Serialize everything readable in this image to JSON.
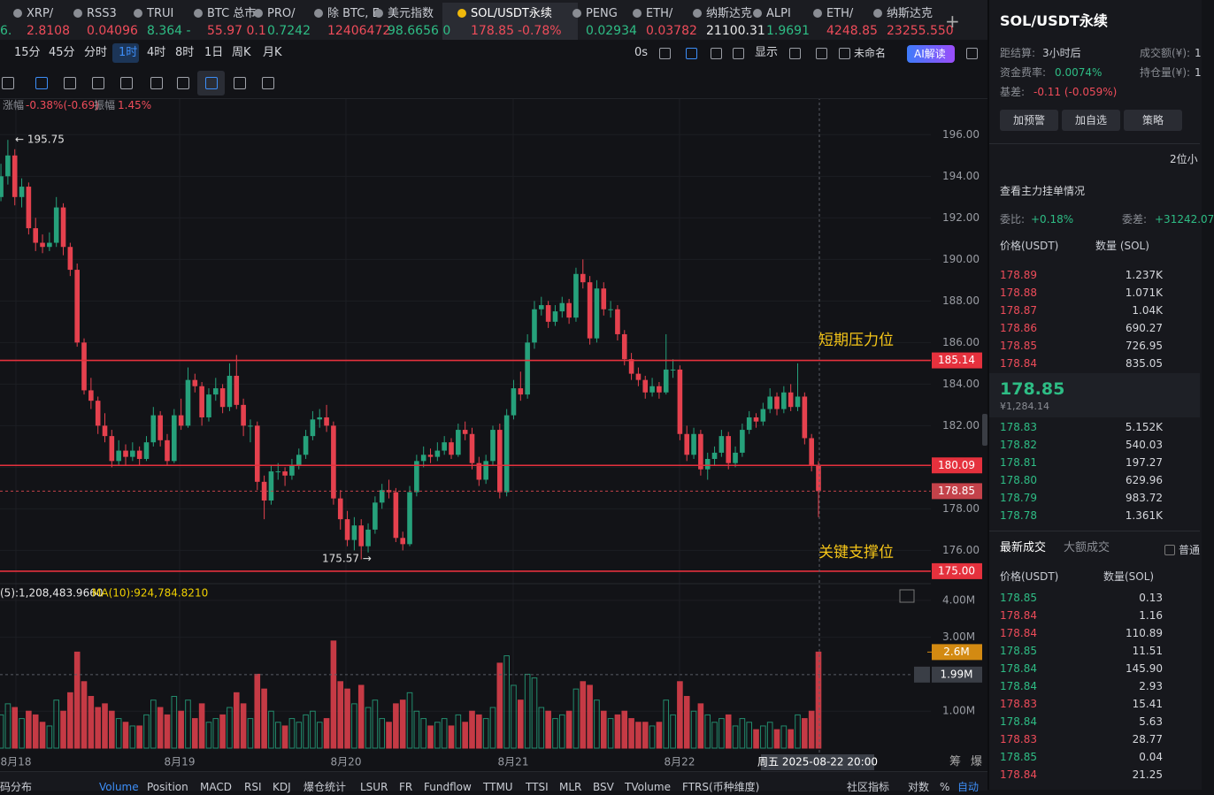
{
  "tab_first_price": "6.",
  "tabs": [
    {
      "name": "XRP/",
      "price": "2.8108",
      "color": "#ef4c5a"
    },
    {
      "name": "RSS3",
      "price": "0.04096",
      "color": "#ef4c5a"
    },
    {
      "name": "TRUI",
      "price": "8.364 -",
      "color": "#2ebd85"
    },
    {
      "name": "BTC 总市",
      "price": "55.97 0.1",
      "color": "#ef4c5a"
    },
    {
      "name": "PRO/",
      "price": "0.7242",
      "color": "#2ebd85"
    },
    {
      "name": "除 BTC, E",
      "price": "12406472",
      "color": "#ef4c5a"
    },
    {
      "name": "美元指数",
      "price": "98.6656 0",
      "color": "#2ebd85"
    },
    {
      "name": "SOL/USDT永续",
      "price": "178.85",
      "change": "-0.78%",
      "color": "#ef4c5a",
      "active": true
    },
    {
      "name": "PENG",
      "price": "0.02934",
      "color": "#2ebd85"
    },
    {
      "name": "ETH/",
      "price": "0.03782",
      "color": "#ef4c5a"
    },
    {
      "name": "纳斯达克",
      "price": "21100.31",
      "color": "#e8e8e8"
    },
    {
      "name": "ALPI",
      "price": "1.9691",
      "color": "#2ebd85"
    },
    {
      "name": "ETH/",
      "price": "4248.85",
      "color": "#ef4c5a"
    },
    {
      "name": "纳斯达克",
      "price": "23255.550",
      "color": "#ef4c5a"
    }
  ],
  "intervals": [
    "15分",
    "45分",
    "分时",
    "1时",
    "4时",
    "8时",
    "1日",
    "周K",
    "月K"
  ],
  "active_interval_index": 3,
  "toolbar_right": {
    "countdown": "0s",
    "display": "显示",
    "layout_name": "未命名",
    "ai": "AI解读"
  },
  "info": {
    "change_label": "涨幅",
    "change": "-0.38%(-0.69)",
    "amplitude_label": "振幅",
    "amplitude": "1.45%"
  },
  "chart_data": {
    "type": "candlestick",
    "up_color": "#26a17b",
    "down_color": "#e5414e",
    "ylim": [
      174.4,
      197.8
    ],
    "yticks": [
      {
        "value": 176,
        "label": "176.00"
      },
      {
        "value": 178,
        "label": "178.00"
      },
      {
        "value": 180,
        "label": "180.00"
      },
      {
        "value": 182,
        "label": "182.00"
      },
      {
        "value": 184,
        "label": "184.00"
      },
      {
        "value": 186,
        "label": "186.00"
      },
      {
        "value": 188,
        "label": "188.00"
      },
      {
        "value": 190,
        "label": "190.00"
      },
      {
        "value": 192,
        "label": "192.00"
      },
      {
        "value": 194,
        "label": "194.00"
      },
      {
        "value": 196,
        "label": "196.00"
      }
    ],
    "levels": [
      {
        "value": 185.14,
        "label": "185.14"
      },
      {
        "value": 180.09,
        "label": "180.09"
      },
      {
        "value": 175,
        "label": "175.00"
      }
    ],
    "last_price": {
      "value": 178.85,
      "label": "178.85"
    },
    "annotations": {
      "high": "← 195.75",
      "low": "175.57 →",
      "resistance": "短期压力位",
      "support": "关键支撑位"
    },
    "x_labels": [
      "8月18",
      "8月19",
      "8月20",
      "8月21",
      "8月22"
    ],
    "crosshair_label": "周五 2025-08-22 20:00",
    "candles": [
      [
        193.0,
        194.6,
        192.8,
        194.0
      ],
      [
        194.0,
        195.75,
        193.6,
        195.0
      ],
      [
        195.0,
        195.3,
        192.6,
        193.0
      ],
      [
        193.0,
        193.9,
        192.5,
        193.5
      ],
      [
        193.5,
        193.7,
        191.2,
        191.5
      ],
      [
        191.5,
        192.0,
        190.4,
        190.8
      ],
      [
        190.8,
        191.2,
        190.3,
        190.6
      ],
      [
        190.6,
        191.3,
        190.4,
        190.8
      ],
      [
        190.8,
        193.0,
        190.6,
        192.5
      ],
      [
        192.5,
        192.7,
        190.2,
        190.6
      ],
      [
        190.6,
        190.8,
        189.2,
        189.5
      ],
      [
        189.5,
        189.8,
        185.8,
        186.0
      ],
      [
        186.0,
        186.2,
        183.5,
        183.7
      ],
      [
        183.7,
        184.3,
        182.8,
        183.2
      ],
      [
        183.2,
        183.4,
        181.6,
        182.0
      ],
      [
        182.0,
        182.6,
        181.2,
        181.5
      ],
      [
        181.5,
        181.8,
        180.0,
        180.3
      ],
      [
        180.3,
        181.3,
        180.1,
        180.8
      ],
      [
        180.8,
        181.1,
        180.1,
        180.5
      ],
      [
        180.5,
        181.2,
        180.3,
        180.8
      ],
      [
        180.8,
        181.0,
        180.1,
        180.4
      ],
      [
        180.4,
        181.5,
        180.3,
        181.2
      ],
      [
        181.2,
        182.9,
        181.0,
        182.5
      ],
      [
        182.5,
        182.7,
        181.0,
        181.3
      ],
      [
        181.3,
        181.6,
        180.1,
        180.3
      ],
      [
        180.3,
        182.8,
        180.2,
        182.5
      ],
      [
        182.5,
        183.3,
        181.8,
        182.0
      ],
      [
        182.0,
        184.8,
        181.9,
        184.2
      ],
      [
        184.2,
        184.5,
        183.6,
        183.9
      ],
      [
        183.9,
        184.1,
        182.0,
        182.4
      ],
      [
        182.4,
        183.8,
        182.2,
        183.5
      ],
      [
        183.5,
        184.3,
        183.2,
        183.8
      ],
      [
        183.8,
        184.0,
        182.6,
        182.9
      ],
      [
        182.9,
        185.0,
        182.7,
        184.4
      ],
      [
        184.4,
        185.4,
        182.8,
        183.0
      ],
      [
        183.0,
        183.3,
        181.5,
        182.0
      ],
      [
        182.0,
        182.3,
        181.2,
        182.0
      ],
      [
        182.0,
        182.2,
        178.9,
        179.3
      ],
      [
        179.3,
        179.6,
        177.5,
        178.4
      ],
      [
        178.4,
        180.1,
        178.2,
        179.8
      ],
      [
        179.8,
        180.2,
        179.4,
        179.8
      ],
      [
        179.8,
        180.0,
        179.1,
        179.6
      ],
      [
        179.6,
        180.4,
        179.4,
        180.1
      ],
      [
        180.1,
        180.9,
        179.9,
        180.6
      ],
      [
        180.6,
        181.8,
        180.4,
        181.5
      ],
      [
        181.5,
        182.7,
        181.3,
        182.3
      ],
      [
        182.3,
        182.8,
        181.9,
        182.4
      ],
      [
        182.4,
        183.0,
        181.7,
        182.0
      ],
      [
        182.0,
        182.2,
        178.2,
        178.5
      ],
      [
        178.5,
        178.9,
        177.0,
        177.5
      ],
      [
        177.5,
        177.9,
        176.2,
        176.5
      ],
      [
        176.5,
        177.6,
        176.0,
        177.2
      ],
      [
        177.2,
        177.5,
        175.57,
        176.2
      ],
      [
        176.2,
        177.3,
        175.9,
        177.0
      ],
      [
        177.0,
        178.6,
        176.8,
        178.3
      ],
      [
        178.3,
        179.2,
        178.0,
        178.9
      ],
      [
        178.9,
        179.4,
        178.5,
        178.8
      ],
      [
        178.8,
        179.0,
        176.4,
        176.6
      ],
      [
        176.6,
        176.9,
        176.0,
        176.3
      ],
      [
        176.3,
        179.1,
        176.2,
        178.8
      ],
      [
        178.8,
        180.6,
        178.6,
        180.3
      ],
      [
        180.3,
        181.0,
        180.0,
        180.6
      ],
      [
        180.6,
        180.9,
        180.2,
        180.5
      ],
      [
        180.5,
        181.2,
        180.3,
        180.8
      ],
      [
        180.8,
        181.5,
        180.6,
        181.2
      ],
      [
        181.2,
        181.4,
        180.4,
        180.6
      ],
      [
        180.6,
        182.1,
        180.5,
        181.8
      ],
      [
        181.8,
        182.2,
        181.3,
        181.6
      ],
      [
        181.6,
        181.9,
        179.9,
        180.2
      ],
      [
        180.2,
        180.5,
        179.1,
        179.4
      ],
      [
        179.4,
        180.6,
        179.2,
        180.3
      ],
      [
        180.3,
        182.0,
        180.1,
        181.8
      ],
      [
        181.8,
        182.1,
        178.5,
        178.8
      ],
      [
        178.8,
        182.8,
        178.6,
        182.5
      ],
      [
        182.5,
        184.2,
        182.3,
        183.8
      ],
      [
        183.8,
        184.6,
        183.2,
        183.5
      ],
      [
        183.5,
        186.4,
        183.3,
        186.0
      ],
      [
        186.0,
        188.0,
        185.7,
        187.6
      ],
      [
        187.6,
        188.2,
        187.3,
        187.8
      ],
      [
        187.8,
        188.0,
        186.7,
        187.0
      ],
      [
        187.0,
        187.8,
        186.8,
        187.5
      ],
      [
        187.5,
        188.2,
        187.2,
        187.9
      ],
      [
        187.9,
        188.1,
        186.9,
        187.2
      ],
      [
        187.2,
        189.6,
        187.0,
        189.3
      ],
      [
        189.3,
        190.0,
        188.6,
        188.9
      ],
      [
        188.9,
        189.2,
        185.9,
        186.2
      ],
      [
        186.2,
        189.0,
        186.0,
        188.6
      ],
      [
        188.6,
        188.9,
        187.3,
        187.6
      ],
      [
        187.6,
        188.0,
        187.2,
        187.6
      ],
      [
        187.6,
        187.8,
        186.1,
        186.4
      ],
      [
        186.4,
        186.6,
        184.9,
        185.2
      ],
      [
        185.2,
        185.5,
        184.2,
        184.5
      ],
      [
        184.5,
        184.8,
        183.9,
        184.2
      ],
      [
        184.2,
        184.4,
        183.3,
        183.6
      ],
      [
        183.6,
        184.3,
        183.4,
        183.9
      ],
      [
        183.9,
        184.1,
        183.3,
        183.6
      ],
      [
        183.6,
        186.4,
        183.5,
        184.7
      ],
      [
        184.7,
        185.2,
        184.3,
        184.7
      ],
      [
        184.7,
        184.9,
        181.3,
        181.6
      ],
      [
        181.6,
        182.0,
        180.3,
        180.6
      ],
      [
        180.6,
        181.9,
        180.4,
        181.6
      ],
      [
        181.6,
        181.8,
        179.6,
        179.9
      ],
      [
        179.9,
        180.7,
        179.4,
        180.4
      ],
      [
        180.4,
        181.0,
        180.1,
        180.7
      ],
      [
        180.7,
        181.8,
        180.5,
        181.5
      ],
      [
        181.5,
        181.7,
        179.9,
        180.2
      ],
      [
        180.2,
        181.0,
        180.0,
        180.7
      ],
      [
        180.7,
        182.1,
        180.5,
        181.8
      ],
      [
        181.8,
        182.7,
        181.6,
        182.4
      ],
      [
        182.4,
        182.6,
        181.9,
        182.2
      ],
      [
        182.2,
        183.1,
        182.0,
        182.8
      ],
      [
        182.8,
        183.8,
        182.6,
        183.4
      ],
      [
        183.4,
        183.6,
        182.5,
        182.8
      ],
      [
        182.8,
        183.9,
        182.6,
        183.6
      ],
      [
        183.6,
        184.0,
        182.7,
        182.9
      ],
      [
        182.9,
        185.0,
        182.7,
        183.4
      ],
      [
        183.4,
        183.6,
        181.1,
        181.4
      ],
      [
        181.4,
        181.6,
        179.8,
        180.1
      ],
      [
        180.1,
        180.3,
        177.6,
        178.85
      ]
    ],
    "volumes": [
      0.9,
      1.2,
      1.1,
      0.8,
      1.0,
      0.9,
      0.7,
      0.6,
      1.3,
      1.0,
      1.5,
      2.6,
      1.8,
      1.4,
      1.1,
      1.2,
      1.0,
      0.8,
      0.7,
      0.6,
      0.6,
      0.9,
      1.3,
      1.1,
      0.9,
      1.4,
      1.0,
      1.3,
      0.8,
      1.2,
      0.7,
      0.8,
      0.9,
      1.1,
      1.5,
      1.2,
      0.8,
      2.0,
      1.6,
      1.0,
      0.7,
      0.6,
      0.8,
      0.7,
      0.9,
      1.0,
      0.7,
      0.8,
      2.9,
      1.8,
      1.6,
      1.2,
      1.7,
      1.1,
      1.3,
      0.8,
      0.7,
      1.2,
      1.3,
      1.5,
      1.0,
      0.8,
      0.6,
      0.7,
      0.8,
      0.6,
      0.9,
      0.7,
      1.0,
      0.9,
      0.8,
      1.1,
      2.3,
      2.5,
      1.7,
      1.3,
      2.0,
      1.9,
      1.1,
      1.0,
      0.8,
      0.9,
      1.0,
      1.6,
      1.8,
      1.7,
      1.3,
      1.0,
      0.8,
      0.9,
      1.0,
      0.8,
      0.7,
      0.7,
      0.6,
      0.7,
      1.3,
      0.9,
      1.8,
      1.4,
      1.0,
      1.2,
      0.9,
      0.7,
      0.8,
      0.9,
      0.6,
      0.8,
      0.7,
      0.5,
      0.6,
      0.7,
      0.5,
      0.6,
      0.5,
      0.9,
      0.8,
      1.0,
      2.6
    ],
    "vol_ylim": [
      0,
      4.5
    ],
    "vol_yticks": [
      {
        "value": 1,
        "label": "1.00M"
      },
      {
        "value": 3,
        "label": "3.00M"
      },
      {
        "value": 4,
        "label": "4.00M"
      }
    ],
    "vol_markers": [
      {
        "value": 2.6,
        "label": "2.6M",
        "color": "#d38a12"
      },
      {
        "value": 1.99,
        "label": "1.99M",
        "color": "#3a3e46"
      }
    ],
    "ma_legend": [
      {
        "text": "(5):1,208,483.9660",
        "color": "#e8e8e8"
      },
      {
        "text": "MA(10):924,784.8210",
        "color": "#f0d000"
      }
    ]
  },
  "axis_side": [
    "筹",
    "爆"
  ],
  "indicator_tabs": [
    "码分布",
    "Volume",
    "Position",
    "MACD",
    "RSI",
    "KDJ",
    "爆仓统计",
    "LSUR",
    "FR",
    "Fundflow",
    "TTMU",
    "TTSI",
    "MLR",
    "BSV",
    "TVolume",
    "FTRS(币种维度)"
  ],
  "bottom_right": [
    "社区指标",
    "对数",
    "%",
    "自动"
  ],
  "panel": {
    "title": "SOL/USDT永续",
    "stats": [
      [
        "距结算:",
        "3小时后"
      ],
      [
        "成交额(¥):",
        "1"
      ],
      [
        "资金费率:",
        "0.0074%"
      ],
      [
        "持仓量(¥):",
        "1"
      ],
      [
        "基差:",
        "-0.11 (-0.059%)"
      ]
    ],
    "buttons": [
      "加预警",
      "加自选",
      "策略"
    ],
    "decimals": "2位小",
    "main_orders": "查看主力挂单情况",
    "ratio_label": "委比:",
    "ratio": "+0.18%",
    "diff_label": "委差:",
    "diff": "+31242.07",
    "book_header": [
      "价格(USDT)",
      "数量 (SOL)"
    ],
    "asks": [
      [
        "178.89",
        "1.237K"
      ],
      [
        "178.88",
        "1.071K"
      ],
      [
        "178.87",
        "1.04K"
      ],
      [
        "178.86",
        "690.27"
      ],
      [
        "178.85",
        "726.95"
      ],
      [
        "178.84",
        "835.05"
      ]
    ],
    "mid_price": "178.85",
    "mid_cny": "¥1,284.14",
    "bids": [
      [
        "178.83",
        "5.152K"
      ],
      [
        "178.82",
        "540.03"
      ],
      [
        "178.81",
        "197.27"
      ],
      [
        "178.80",
        "629.96"
      ],
      [
        "178.79",
        "983.72"
      ],
      [
        "178.78",
        "1.361K"
      ]
    ],
    "trade_tabs": [
      "最新成交",
      "大额成交"
    ],
    "normal": "普通",
    "trade_header": [
      "价格(USDT)",
      "数量(SOL)"
    ],
    "trades": [
      {
        "price": "178.85",
        "qty": "0.13",
        "color": "#2ebd85"
      },
      {
        "price": "178.84",
        "qty": "1.16",
        "color": "#ef4c5a"
      },
      {
        "price": "178.84",
        "qty": "110.89",
        "color": "#ef4c5a"
      },
      {
        "price": "178.85",
        "qty": "11.51",
        "color": "#2ebd85"
      },
      {
        "price": "178.84",
        "qty": "145.90",
        "color": "#2ebd85"
      },
      {
        "price": "178.84",
        "qty": "2.93",
        "color": "#2ebd85"
      },
      {
        "price": "178.83",
        "qty": "15.41",
        "color": "#ef4c5a"
      },
      {
        "price": "178.84",
        "qty": "5.63",
        "color": "#2ebd85"
      },
      {
        "price": "178.83",
        "qty": "28.77",
        "color": "#ef4c5a"
      },
      {
        "price": "178.85",
        "qty": "0.04",
        "color": "#2ebd85"
      },
      {
        "price": "178.84",
        "qty": "21.25",
        "color": "#ef4c5a"
      }
    ]
  }
}
